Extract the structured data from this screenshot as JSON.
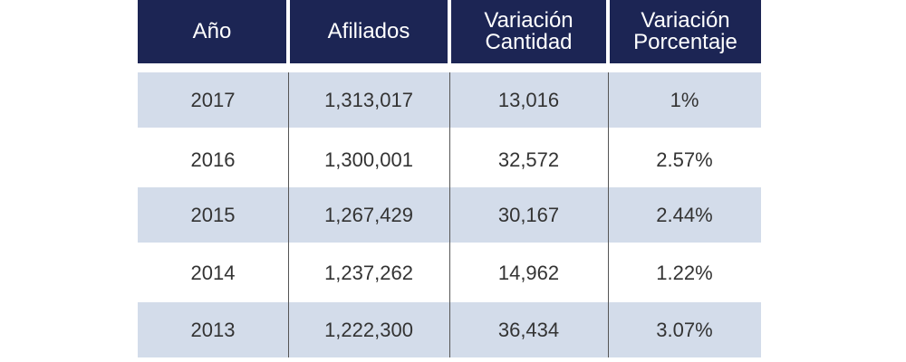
{
  "chart_data": {
    "type": "table",
    "columns": [
      "Año",
      "Afiliados",
      "Variación\nCantidad",
      "Variación\nPorcentaje"
    ],
    "rows": [
      [
        "2017",
        "1,313,017",
        "13,016",
        "1%"
      ],
      [
        "2016",
        "1,300,001",
        "32,572",
        "2.57%"
      ],
      [
        "2015",
        "1,267,429",
        "30,167",
        "2.44%"
      ],
      [
        "2014",
        "1,237,262",
        "14,962",
        "1.22%"
      ],
      [
        "2013",
        "1,222,300",
        "36,434",
        "3.07%"
      ]
    ]
  },
  "colors": {
    "header_bg": "#1c2554",
    "header_text": "#ffffff",
    "stripe": "#d3dcea",
    "divider": "#555555",
    "body_text": "#333333"
  }
}
